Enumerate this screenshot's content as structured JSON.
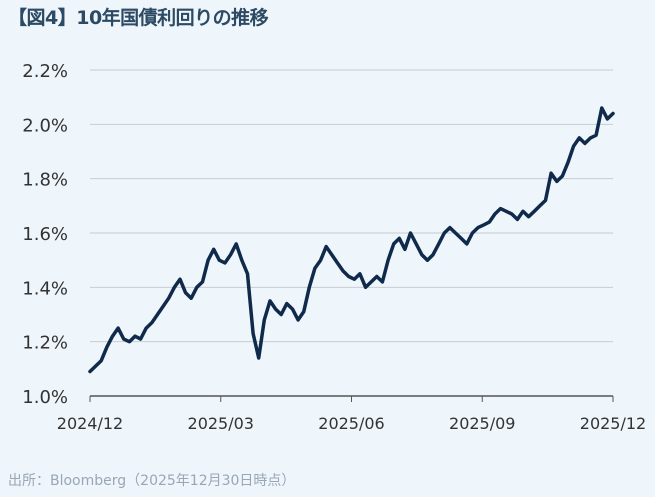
{
  "title": "【図4】10年国債利回りの推移",
  "source": "出所：Bloomberg（2025年12月30日時点）",
  "colors": {
    "line": "#0f2a4a",
    "grid": "#c8ccd0",
    "background": "#eef5fb",
    "title": "#2c4a63"
  },
  "chart_data": {
    "type": "line",
    "title": "【図4】10年国債利回りの推移",
    "xlabel": "",
    "ylabel": "",
    "x_ticks": [
      "2024/12",
      "2025/03",
      "2025/06",
      "2025/09",
      "2025/12"
    ],
    "y_ticks": [
      "1.0%",
      "1.2%",
      "1.4%",
      "1.6%",
      "1.8%",
      "2.0%",
      "2.2%"
    ],
    "ylim": [
      1.0,
      2.2
    ],
    "grid": "horizontal",
    "series": [
      {
        "values": [
          1.09,
          1.11,
          1.13,
          1.18,
          1.22,
          1.25,
          1.21,
          1.2,
          1.22,
          1.21,
          1.25,
          1.27,
          1.3,
          1.33,
          1.36,
          1.4,
          1.43,
          1.38,
          1.36,
          1.4,
          1.42,
          1.5,
          1.54,
          1.5,
          1.49,
          1.52,
          1.56,
          1.5,
          1.45,
          1.23,
          1.14,
          1.28,
          1.35,
          1.32,
          1.3,
          1.34,
          1.32,
          1.28,
          1.31,
          1.4,
          1.47,
          1.5,
          1.55,
          1.52,
          1.49,
          1.46,
          1.44,
          1.43,
          1.45,
          1.4,
          1.42,
          1.44,
          1.42,
          1.5,
          1.56,
          1.58,
          1.54,
          1.6,
          1.56,
          1.52,
          1.5,
          1.52,
          1.56,
          1.6,
          1.62,
          1.6,
          1.58,
          1.56,
          1.6,
          1.62,
          1.63,
          1.64,
          1.67,
          1.69,
          1.68,
          1.67,
          1.65,
          1.68,
          1.66,
          1.68,
          1.7,
          1.72,
          1.82,
          1.79,
          1.81,
          1.86,
          1.92,
          1.95,
          1.93,
          1.95,
          1.96,
          2.06,
          2.02,
          2.04
        ]
      }
    ]
  }
}
